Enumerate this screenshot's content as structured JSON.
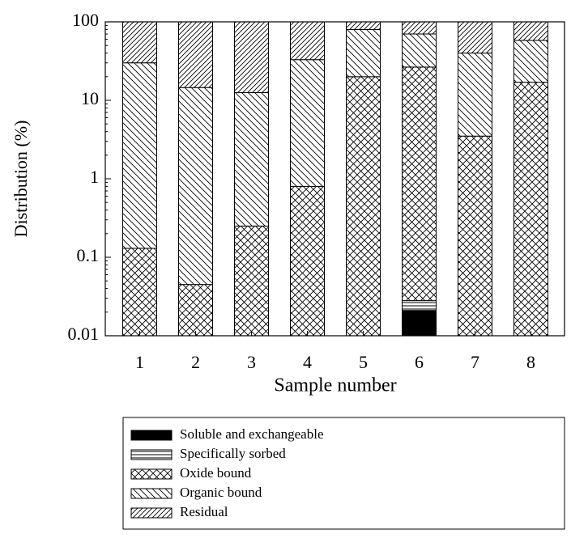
{
  "chart_data": {
    "type": "stacked_bar",
    "y_label": "Distribution (%)",
    "x_label": "Sample number",
    "categories": [
      "1",
      "2",
      "3",
      "4",
      "5",
      "6",
      "7",
      "8"
    ],
    "log_scale": true,
    "ylim": [
      0.01,
      100
    ],
    "yticks": [
      0.01,
      0.1,
      1,
      10,
      100
    ],
    "legend_position": "bottom",
    "series": [
      {
        "name": "Soluble and exchangeable",
        "color": "#000000",
        "hatch": "solid",
        "values": [
          null,
          null,
          null,
          null,
          null,
          0.021,
          null,
          null
        ]
      },
      {
        "name": "Specifically sorbed",
        "color": "#000000",
        "hatch": "horizontal",
        "values": [
          null,
          null,
          null,
          null,
          null,
          0.007,
          null,
          null
        ]
      },
      {
        "name": "Oxide bound",
        "color": "#000000",
        "hatch": "cross",
        "values": [
          0.13,
          0.045,
          0.25,
          0.8,
          20,
          26.5,
          3.5,
          17
        ]
      },
      {
        "name": "Organic bound",
        "color": "#000000",
        "hatch": "backslash",
        "values": [
          29.9,
          14.5,
          12.3,
          32.2,
          60,
          43.5,
          36.5,
          41
        ]
      },
      {
        "name": "Residual",
        "color": "#000000",
        "hatch": "slash",
        "values": [
          70,
          85.4,
          87.5,
          67,
          20,
          30,
          60,
          42
        ]
      }
    ]
  }
}
